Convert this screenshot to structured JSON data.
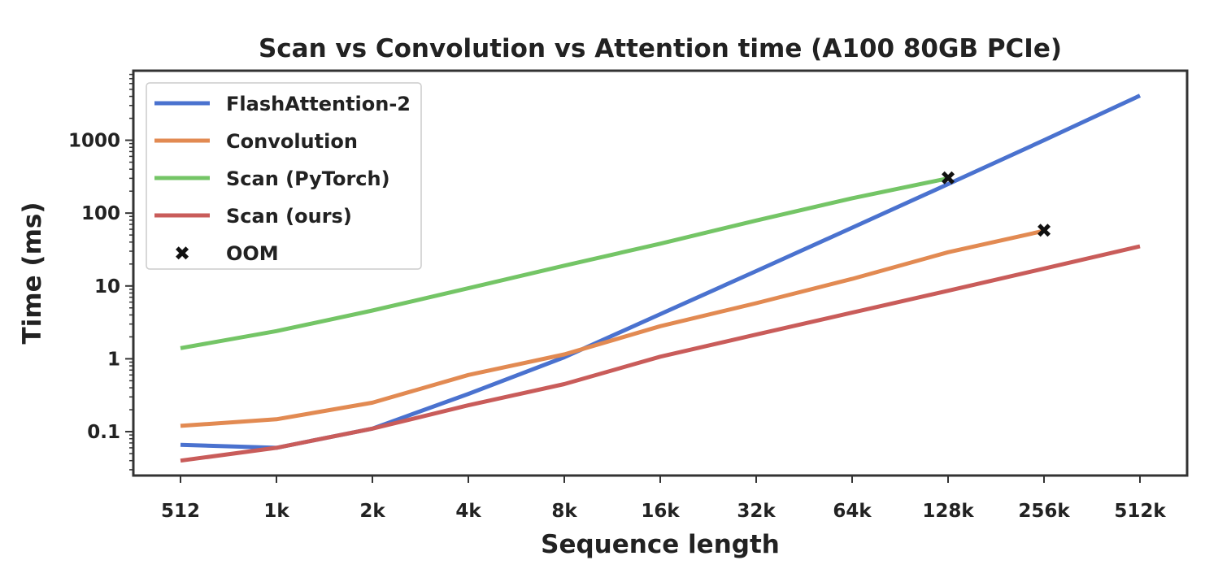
{
  "chart_data": {
    "type": "line",
    "title": "Scan vs Convolution vs Attention time (A100 80GB PCIe)",
    "xlabel": "Sequence length",
    "ylabel": "Time (ms)",
    "yscale": "log",
    "ylim": [
      0.025,
      9000
    ],
    "categories": [
      "512",
      "1k",
      "2k",
      "4k",
      "8k",
      "16k",
      "32k",
      "64k",
      "128k",
      "256k",
      "512k"
    ],
    "y_ticks": [
      0.1,
      1,
      10,
      100,
      1000
    ],
    "y_tick_labels": [
      "0.1",
      "1",
      "10",
      "100",
      "1000"
    ],
    "grid": false,
    "legend_position": "top-left",
    "series": [
      {
        "name": "FlashAttention-2",
        "color": "#4a72cf",
        "values": [
          0.066,
          0.06,
          0.11,
          0.33,
          1.05,
          4.1,
          16,
          63,
          250,
          1000,
          4100
        ]
      },
      {
        "name": "Convolution",
        "color": "#e28a52",
        "values": [
          0.12,
          0.148,
          0.25,
          0.6,
          1.15,
          2.8,
          5.8,
          12.5,
          29,
          57,
          null
        ]
      },
      {
        "name": "Scan (PyTorch)",
        "color": "#74c566",
        "values": [
          1.4,
          2.4,
          4.6,
          9.3,
          19,
          38,
          79,
          160,
          300,
          null,
          null
        ]
      },
      {
        "name": "Scan (ours)",
        "color": "#c95c5a",
        "values": [
          0.04,
          0.06,
          0.11,
          0.23,
          0.45,
          1.07,
          2.15,
          4.3,
          8.6,
          17.3,
          35
        ]
      }
    ],
    "oom_marker": {
      "label": "OOM",
      "symbol": "✖",
      "color": "#111111",
      "points": [
        {
          "x": "128k",
          "y": 300
        },
        {
          "x": "256k",
          "y": 57
        }
      ]
    }
  }
}
